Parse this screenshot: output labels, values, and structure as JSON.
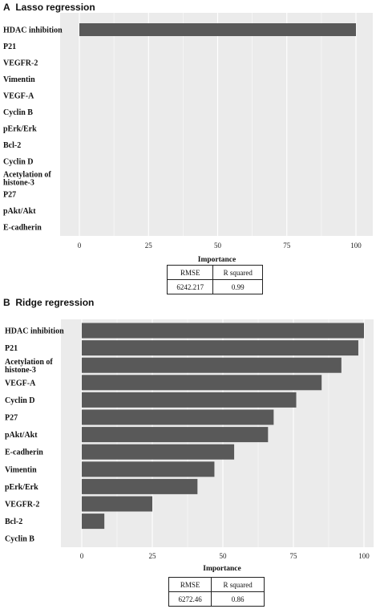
{
  "chart_data": [
    {
      "type": "bar",
      "orientation": "horizontal",
      "panel_label": "A",
      "title": "Lasso regression",
      "categories": [
        "HDAC inhibition",
        "P21",
        "VEGFR-2",
        "Vimentin",
        "VEGF-A",
        "Cyclin B",
        "pErk/Erk",
        "Bcl-2",
        "Cyclin D",
        "Acetylation of histone-3",
        "P27",
        "pAkt/Akt",
        "E-cadherin"
      ],
      "values": [
        100,
        0,
        0,
        0,
        0,
        0,
        0,
        0,
        0,
        0,
        0,
        0,
        0
      ],
      "xlabel": "Importance",
      "ylabel": "",
      "xlim": [
        0,
        100
      ],
      "xticks": [
        0,
        25,
        50,
        75,
        100
      ],
      "grid": true,
      "stats": {
        "headers": [
          "RMSE",
          "R squared"
        ],
        "values": [
          "6242.217",
          "0.99"
        ]
      }
    },
    {
      "type": "bar",
      "orientation": "horizontal",
      "panel_label": "B",
      "title": "Ridge regression",
      "categories": [
        "HDAC inhibition",
        "P21",
        "Acetylation of histone-3",
        "VEGF-A",
        "Cyclin D",
        "P27",
        "pAkt/Akt",
        "E-cadherin",
        "Vimentin",
        "pErk/Erk",
        "VEGFR-2",
        "Bcl-2",
        "Cyclin B"
      ],
      "values": [
        100,
        98,
        92,
        85,
        76,
        68,
        66,
        54,
        47,
        41,
        25,
        8,
        0
      ],
      "xlabel": "Importance",
      "ylabel": "",
      "xlim": [
        0,
        100
      ],
      "xticks": [
        0,
        25,
        50,
        75,
        100
      ],
      "grid": true,
      "stats": {
        "headers": [
          "RMSE",
          "R squared"
        ],
        "values": [
          "6272.46",
          "0.86"
        ]
      }
    }
  ],
  "colors": {
    "panel_bg": "#ebebeb",
    "grid": "#ffffff",
    "bar": "#595959"
  }
}
